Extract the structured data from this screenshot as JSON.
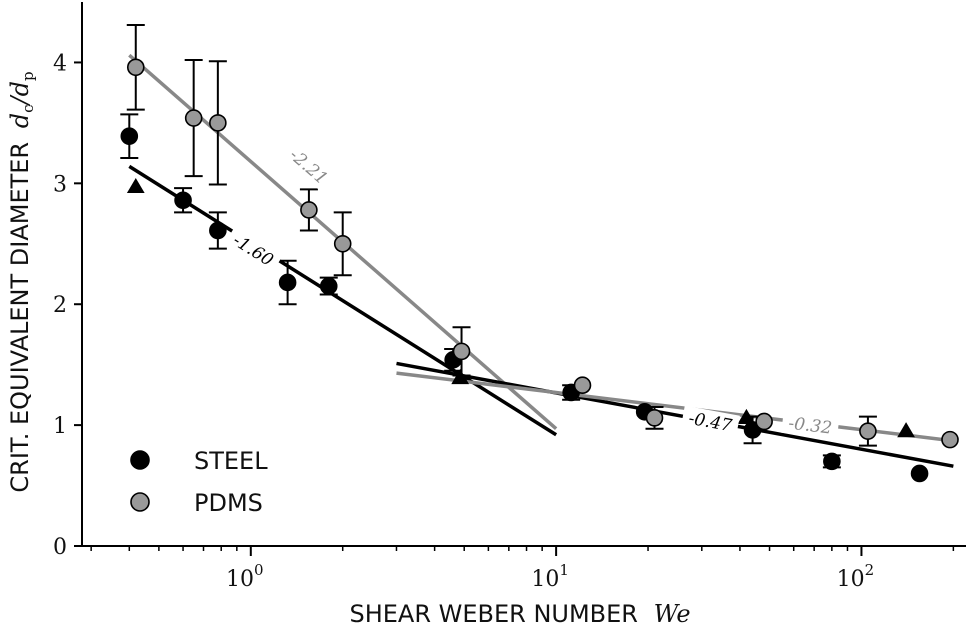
{
  "chart_data": {
    "type": "scatter",
    "xscale": "log",
    "xlabel": "SHEAR WEBER NUMBER",
    "xlabel_symbol": "We",
    "ylabel": "CRIT. EQUIVALENT DIAMETER",
    "ylabel_symbol": "d_c/d_p",
    "xlim": [
      0.28,
      220
    ],
    "ylim": [
      0,
      4.5
    ],
    "yticks": [
      0,
      1,
      2,
      3,
      4
    ],
    "xticks": [
      {
        "value": 1,
        "base": "10",
        "exp": "0"
      },
      {
        "value": 10,
        "base": "10",
        "exp": "1"
      },
      {
        "value": 100,
        "base": "10",
        "exp": "2"
      }
    ],
    "legend": {
      "position": "lower-left",
      "entries": [
        {
          "label": "STEEL",
          "color": "#000000"
        },
        {
          "label": "PDMS",
          "color": "#999999"
        }
      ]
    },
    "series": [
      {
        "name": "STEEL",
        "marker": "circle",
        "color": "#000000",
        "points": [
          {
            "x": 0.4,
            "y": 3.39,
            "yerr": 0.18
          },
          {
            "x": 0.6,
            "y": 2.86,
            "yerr": 0.1
          },
          {
            "x": 0.78,
            "y": 2.61,
            "yerr": 0.15
          },
          {
            "x": 1.32,
            "y": 2.18,
            "yerr": 0.18
          },
          {
            "x": 1.8,
            "y": 2.15,
            "yerr": 0.07
          },
          {
            "x": 4.6,
            "y": 1.54,
            "yerr": 0.09
          },
          {
            "x": 11.2,
            "y": 1.27,
            "yerr": 0.06
          },
          {
            "x": 19.5,
            "y": 1.11,
            "yerr": 0.0
          },
          {
            "x": 44.0,
            "y": 0.96,
            "yerr": 0.11
          },
          {
            "x": 80.0,
            "y": 0.7,
            "yerr": 0.05
          },
          {
            "x": 155.0,
            "y": 0.6,
            "yerr": 0.0
          }
        ]
      },
      {
        "name": "PDMS",
        "marker": "circle",
        "color": "#999999",
        "points": [
          {
            "x": 0.42,
            "y": 3.96,
            "yerr": 0.35
          },
          {
            "x": 0.65,
            "y": 3.54,
            "yerr": 0.48
          },
          {
            "x": 0.78,
            "y": 3.5,
            "yerr": 0.51
          },
          {
            "x": 1.55,
            "y": 2.78,
            "yerr": 0.17
          },
          {
            "x": 2.0,
            "y": 2.5,
            "yerr": 0.26
          },
          {
            "x": 4.9,
            "y": 1.61,
            "yerr": 0.2
          },
          {
            "x": 12.2,
            "y": 1.33,
            "yerr": 0.0
          },
          {
            "x": 21.0,
            "y": 1.06,
            "yerr": 0.09
          },
          {
            "x": 48.0,
            "y": 1.03,
            "yerr": 0.0
          },
          {
            "x": 105.0,
            "y": 0.95,
            "yerr": 0.12
          },
          {
            "x": 195.0,
            "y": 0.88,
            "yerr": 0.0
          }
        ]
      },
      {
        "name": "",
        "marker": "triangle",
        "color": "#000000",
        "points": [
          {
            "x": 0.42,
            "y": 2.97
          },
          {
            "x": 4.85,
            "y": 1.39
          },
          {
            "x": 42.0,
            "y": 1.06
          },
          {
            "x": 140.0,
            "y": 0.95
          }
        ]
      }
    ],
    "fits": [
      {
        "slope_label": "-2.21",
        "color": "#888888",
        "x": [
          0.4,
          10
        ],
        "y": [
          4.06,
          0.97
        ],
        "label_at": {
          "x": 1.55,
          "y": 3.14
        }
      },
      {
        "slope_label": "-1.60",
        "color": "#000000",
        "x": [
          0.4,
          10
        ],
        "y": [
          3.14,
          0.92
        ],
        "label_at": {
          "x": 1.02,
          "y": 2.45
        }
      },
      {
        "slope_label": "-0.47",
        "color": "#000000",
        "x": [
          3,
          200
        ],
        "y": [
          1.51,
          0.66
        ],
        "label_at": {
          "x": 32.0,
          "y": 1.03
        }
      },
      {
        "slope_label": "-0.32",
        "color": "#888888",
        "x": [
          3,
          200
        ],
        "y": [
          1.43,
          0.87
        ],
        "label_at": {
          "x": 68.0,
          "y": 1.0
        }
      }
    ]
  }
}
